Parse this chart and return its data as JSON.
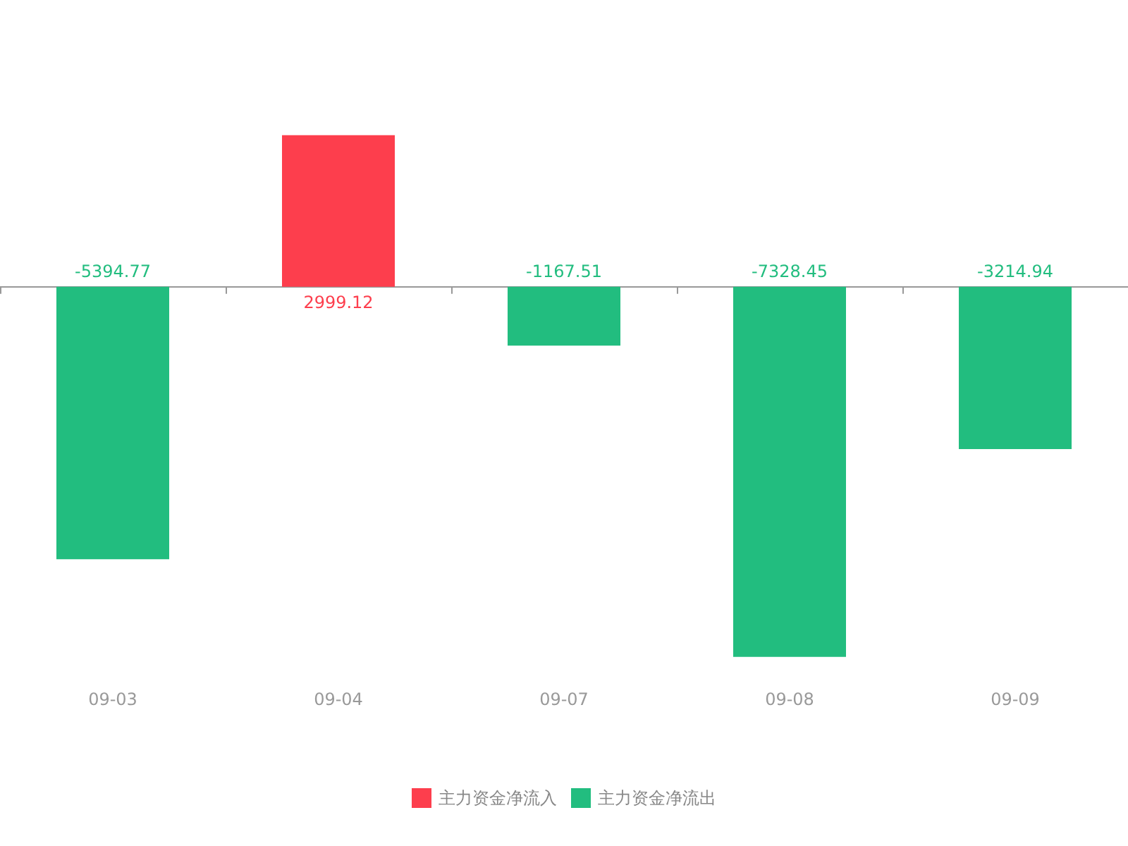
{
  "chart_data": {
    "type": "bar",
    "categories": [
      "09-03",
      "09-04",
      "09-07",
      "09-08",
      "09-09"
    ],
    "series": [
      {
        "name": "主力资金净流入",
        "color": "#fd3e4d",
        "values": [
          null,
          2999.12,
          null,
          null,
          null
        ]
      },
      {
        "name": "主力资金净流出",
        "color": "#22bd7f",
        "values": [
          -5394.77,
          null,
          -1167.51,
          -7328.45,
          -3214.94
        ]
      }
    ],
    "data_labels": true,
    "legend": "bottom",
    "grid": false
  }
}
